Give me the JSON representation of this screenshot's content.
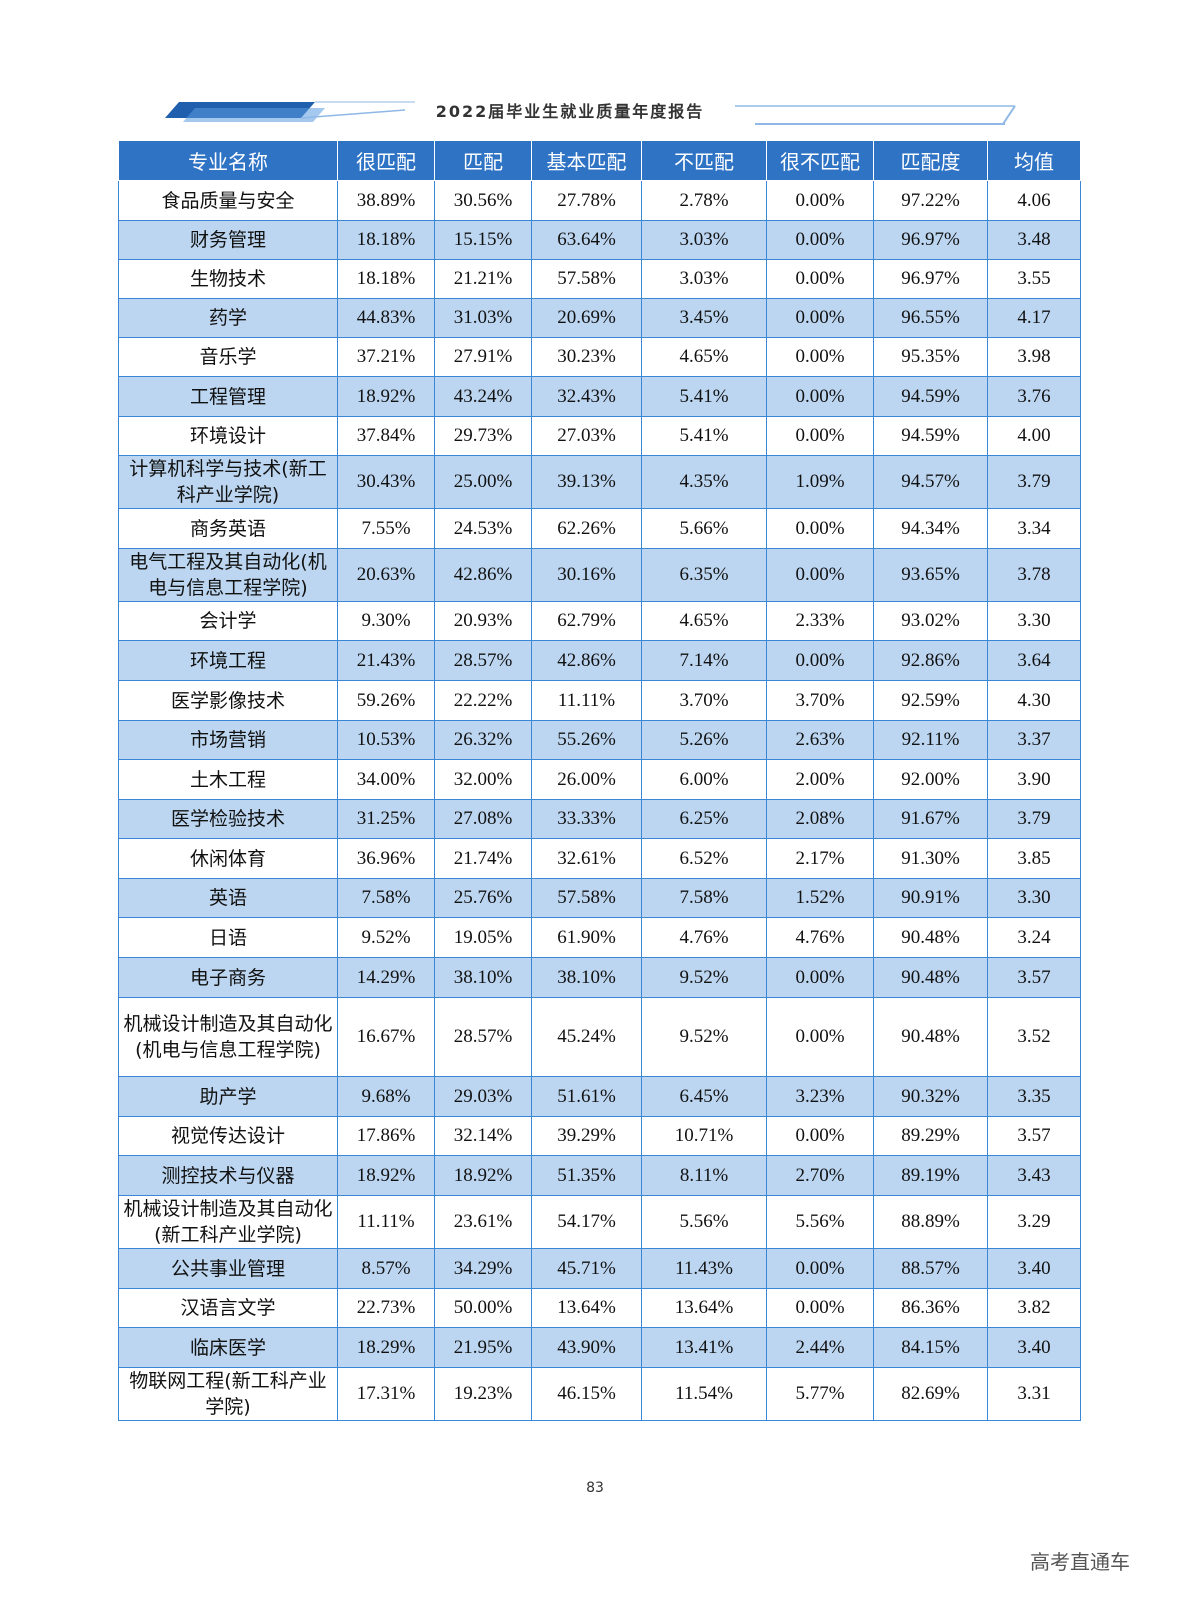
{
  "header": {
    "title": "2022届毕业生就业质量年度报告"
  },
  "table": {
    "columns": [
      "专业名称",
      "很匹配",
      "匹配",
      "基本匹配",
      "不匹配",
      "很不匹配",
      "匹配度",
      "均值"
    ],
    "rows": [
      [
        "食品质量与安全",
        "38.89%",
        "30.56%",
        "27.78%",
        "2.78%",
        "0.00%",
        "97.22%",
        "4.06"
      ],
      [
        "财务管理",
        "18.18%",
        "15.15%",
        "63.64%",
        "3.03%",
        "0.00%",
        "96.97%",
        "3.48"
      ],
      [
        "生物技术",
        "18.18%",
        "21.21%",
        "57.58%",
        "3.03%",
        "0.00%",
        "96.97%",
        "3.55"
      ],
      [
        "药学",
        "44.83%",
        "31.03%",
        "20.69%",
        "3.45%",
        "0.00%",
        "96.55%",
        "4.17"
      ],
      [
        "音乐学",
        "37.21%",
        "27.91%",
        "30.23%",
        "4.65%",
        "0.00%",
        "95.35%",
        "3.98"
      ],
      [
        "工程管理",
        "18.92%",
        "43.24%",
        "32.43%",
        "5.41%",
        "0.00%",
        "94.59%",
        "3.76"
      ],
      [
        "环境设计",
        "37.84%",
        "29.73%",
        "27.03%",
        "5.41%",
        "0.00%",
        "94.59%",
        "4.00"
      ],
      [
        "计算机科学与技术(新工科产业学院)",
        "30.43%",
        "25.00%",
        "39.13%",
        "4.35%",
        "1.09%",
        "94.57%",
        "3.79"
      ],
      [
        "商务英语",
        "7.55%",
        "24.53%",
        "62.26%",
        "5.66%",
        "0.00%",
        "94.34%",
        "3.34"
      ],
      [
        "电气工程及其自动化(机电与信息工程学院)",
        "20.63%",
        "42.86%",
        "30.16%",
        "6.35%",
        "0.00%",
        "93.65%",
        "3.78"
      ],
      [
        "会计学",
        "9.30%",
        "20.93%",
        "62.79%",
        "4.65%",
        "2.33%",
        "93.02%",
        "3.30"
      ],
      [
        "环境工程",
        "21.43%",
        "28.57%",
        "42.86%",
        "7.14%",
        "0.00%",
        "92.86%",
        "3.64"
      ],
      [
        "医学影像技术",
        "59.26%",
        "22.22%",
        "11.11%",
        "3.70%",
        "3.70%",
        "92.59%",
        "4.30"
      ],
      [
        "市场营销",
        "10.53%",
        "26.32%",
        "55.26%",
        "5.26%",
        "2.63%",
        "92.11%",
        "3.37"
      ],
      [
        "土木工程",
        "34.00%",
        "32.00%",
        "26.00%",
        "6.00%",
        "2.00%",
        "92.00%",
        "3.90"
      ],
      [
        "医学检验技术",
        "31.25%",
        "27.08%",
        "33.33%",
        "6.25%",
        "2.08%",
        "91.67%",
        "3.79"
      ],
      [
        "休闲体育",
        "36.96%",
        "21.74%",
        "32.61%",
        "6.52%",
        "2.17%",
        "91.30%",
        "3.85"
      ],
      [
        "英语",
        "7.58%",
        "25.76%",
        "57.58%",
        "7.58%",
        "1.52%",
        "90.91%",
        "3.30"
      ],
      [
        "日语",
        "9.52%",
        "19.05%",
        "61.90%",
        "4.76%",
        "4.76%",
        "90.48%",
        "3.24"
      ],
      [
        "电子商务",
        "14.29%",
        "38.10%",
        "38.10%",
        "9.52%",
        "0.00%",
        "90.48%",
        "3.57"
      ],
      [
        "机械设计制造及其自动化(机电与信息工程学院)",
        "16.67%",
        "28.57%",
        "45.24%",
        "9.52%",
        "0.00%",
        "90.48%",
        "3.52"
      ],
      [
        "助产学",
        "9.68%",
        "29.03%",
        "51.61%",
        "6.45%",
        "3.23%",
        "90.32%",
        "3.35"
      ],
      [
        "视觉传达设计",
        "17.86%",
        "32.14%",
        "39.29%",
        "10.71%",
        "0.00%",
        "89.29%",
        "3.57"
      ],
      [
        "测控技术与仪器",
        "18.92%",
        "18.92%",
        "51.35%",
        "8.11%",
        "2.70%",
        "89.19%",
        "3.43"
      ],
      [
        "机械设计制造及其自动化(新工科产业学院)",
        "11.11%",
        "23.61%",
        "54.17%",
        "5.56%",
        "5.56%",
        "88.89%",
        "3.29"
      ],
      [
        "公共事业管理",
        "8.57%",
        "34.29%",
        "45.71%",
        "11.43%",
        "0.00%",
        "88.57%",
        "3.40"
      ],
      [
        "汉语言文学",
        "22.73%",
        "50.00%",
        "13.64%",
        "13.64%",
        "0.00%",
        "86.36%",
        "3.82"
      ],
      [
        "临床医学",
        "18.29%",
        "21.95%",
        "43.90%",
        "13.41%",
        "2.44%",
        "84.15%",
        "3.40"
      ],
      [
        "物联网工程(新工科产业学院)",
        "17.31%",
        "19.23%",
        "46.15%",
        "11.54%",
        "5.77%",
        "82.69%",
        "3.31"
      ]
    ]
  },
  "footer": {
    "page_number": "83",
    "watermark": "高考直通车"
  }
}
